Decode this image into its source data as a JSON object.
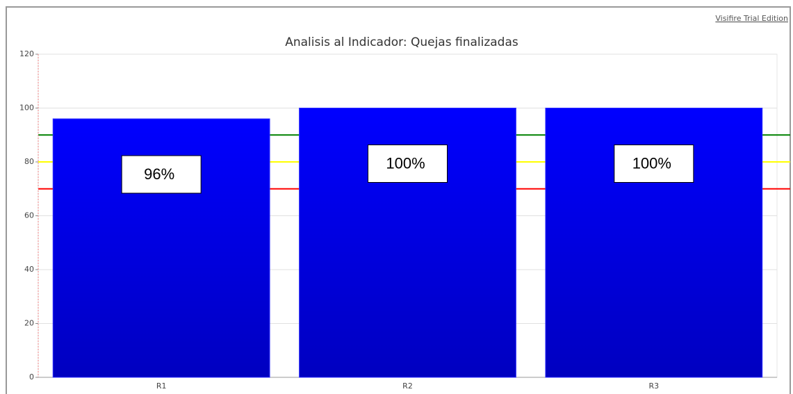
{
  "chart_data": {
    "type": "bar",
    "title": "Analisis al Indicador: Quejas finalizadas",
    "watermark": "Visifire Trial Edition",
    "categories": [
      "R1",
      "R2",
      "R3"
    ],
    "values": [
      96,
      100,
      100
    ],
    "value_labels": [
      "96%",
      "100%",
      "100%"
    ],
    "color": "#0000ff",
    "ylim": [
      0,
      120
    ],
    "yticks": [
      0,
      20,
      40,
      60,
      80,
      100,
      120
    ],
    "grid": true,
    "reference_lines": [
      {
        "value": 90,
        "color": "#008000"
      },
      {
        "value": 80,
        "color": "#ffff00"
      },
      {
        "value": 70,
        "color": "#ff0000"
      }
    ]
  }
}
